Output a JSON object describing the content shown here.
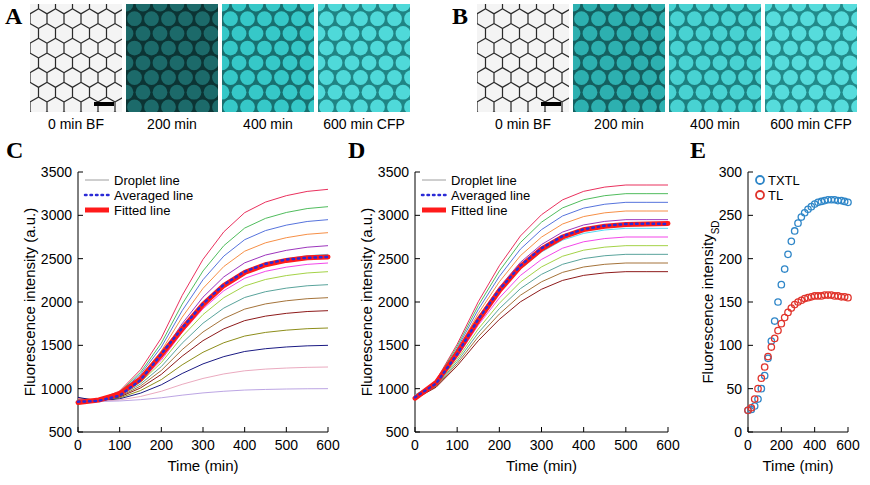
{
  "images": [
    {
      "panel": "A",
      "labels": [
        "0 min BF",
        "200 min",
        "400 min",
        "600 min CFP"
      ]
    },
    {
      "panel": "B",
      "labels": [
        "0 min BF",
        "200 min",
        "400 min",
        "600 min CFP"
      ]
    }
  ],
  "chart_data": [
    {
      "type": "line",
      "panel": "C",
      "xlabel": "Time (min)",
      "ylabel": "Fluorescence intensity (a.u.)",
      "x": [
        0,
        50,
        100,
        150,
        200,
        250,
        300,
        350,
        400,
        450,
        500,
        550,
        600
      ],
      "xlim": [
        0,
        600
      ],
      "xticks": [
        0,
        100,
        200,
        300,
        400,
        500,
        600
      ],
      "ylim": [
        500,
        3500
      ],
      "yticks": [
        500,
        1000,
        1500,
        2000,
        2500,
        3000,
        3500
      ],
      "legend": "top-left",
      "series": [
        {
          "name": "Droplet line",
          "color": "#9e9e9e",
          "line_style": "solid",
          "colors": [
            "#e6194b",
            "#3cb44b",
            "#4363d8",
            "#f58231",
            "#911eb4",
            "#42d4f4",
            "#f032e6",
            "#9acd32",
            "#469990",
            "#9a6324",
            "#800000",
            "#808000",
            "#000075",
            "#e8a0b8",
            "#b49be0"
          ],
          "lines": [
            [
              830,
              875,
              973,
              1218,
              1585,
              2075,
              2492,
              2810,
              3031,
              3153,
              3227,
              3276,
              3300
            ],
            [
              870,
              873,
              963,
              1188,
              1525,
              1975,
              2358,
              2650,
              2853,
              2965,
              3033,
              3078,
              3100
            ],
            [
              850,
              871,
              955,
              1165,
              1480,
              1900,
              2257,
              2530,
              2719,
              2824,
              2887,
              2929,
              2950
            ],
            [
              890,
              870,
              948,
              1143,
              1435,
              1825,
              2157,
              2410,
              2586,
              2683,
              2742,
              2781,
              2800
            ],
            [
              840,
              868,
              940,
              1120,
              1390,
              1750,
              2056,
              2290,
              2452,
              2542,
              2596,
              2632,
              2650
            ],
            [
              860,
              867,
              935,
              1105,
              1360,
              1700,
              1989,
              2210,
              2363,
              2448,
              2499,
              2533,
              2550
            ],
            [
              880,
              866,
              930,
              1090,
              1330,
              1650,
              1922,
              2130,
              2274,
              2354,
              2402,
              2434,
              2450
            ],
            [
              820,
              865,
              925,
              1075,
              1300,
              1600,
              1855,
              2050,
              2185,
              2260,
              2305,
              2335,
              2350
            ],
            [
              850,
              864,
              918,
              1053,
              1255,
              1525,
              1755,
              1930,
              2052,
              2119,
              2160,
              2187,
              2200
            ],
            [
              870,
              862,
              910,
              1030,
              1210,
              1450,
              1654,
              1810,
              1918,
              1978,
              2014,
              2038,
              2050
            ],
            [
              840,
              861,
              903,
              1008,
              1165,
              1375,
              1554,
              1690,
              1785,
              1837,
              1869,
              1890,
              1900
            ],
            [
              860,
              859,
              893,
              978,
              1105,
              1275,
              1420,
              1530,
              1607,
              1649,
              1675,
              1692,
              1700
            ],
            [
              900,
              857,
              883,
              948,
              1045,
              1175,
              1286,
              1370,
              1429,
              1461,
              1481,
              1494,
              1500
            ],
            [
              830,
              854,
              870,
              910,
              970,
              1050,
              1118,
              1170,
              1206,
              1226,
              1238,
              1246,
              1250
            ],
            [
              850,
              852,
              858,
              873,
              895,
              925,
              951,
              970,
              984,
              991,
              996,
              999,
              1000
            ]
          ]
        },
        {
          "name": "Averaged line",
          "color": "#2b2bd6",
          "line_style": "dotted",
          "values": [
            850,
            860,
            920,
            1100,
            1400,
            1700,
            1980,
            2200,
            2350,
            2440,
            2490,
            2510,
            2520
          ]
        },
        {
          "name": "Fitted line",
          "color": "#ff1a1a",
          "line_style": "solid",
          "values": [
            840,
            870,
            940,
            1110,
            1390,
            1690,
            1970,
            2190,
            2340,
            2430,
            2480,
            2510,
            2520
          ]
        }
      ]
    },
    {
      "type": "line",
      "panel": "D",
      "xlabel": "Time (min)",
      "ylabel": "Fluorescence intensity (a.u.)",
      "x": [
        0,
        50,
        100,
        150,
        200,
        250,
        300,
        350,
        400,
        450,
        500,
        550,
        600
      ],
      "xlim": [
        0,
        600
      ],
      "xticks": [
        0,
        100,
        200,
        300,
        400,
        500,
        600
      ],
      "ylim": [
        500,
        3500
      ],
      "yticks": [
        500,
        1000,
        1500,
        2000,
        2500,
        3000,
        3500
      ],
      "legend": "top-left",
      "series": [
        {
          "name": "Droplet line",
          "color": "#9e9e9e",
          "line_style": "solid",
          "colors": [
            "#e6194b",
            "#3cb44b",
            "#4363d8",
            "#f58231",
            "#911eb4",
            "#42d4f4",
            "#f032e6",
            "#9acd32",
            "#469990",
            "#9a6324",
            "#800000"
          ],
          "lines": [
            [
              900,
              1096,
              1513,
              2003,
              2419,
              2762,
              3007,
              3179,
              3277,
              3326,
              3350,
              3350,
              3350
            ],
            [
              880,
              1088,
              1488,
              1958,
              2357,
              2686,
              2921,
              3086,
              3180,
              3227,
              3250,
              3250,
              3250
            ],
            [
              920,
              1080,
              1463,
              1913,
              2295,
              2610,
              2835,
              2993,
              3083,
              3128,
              3150,
              3150,
              3150
            ],
            [
              900,
              1072,
              1438,
              1868,
              2233,
              2534,
              2749,
              2900,
              2986,
              3029,
              3050,
              3050,
              3050
            ],
            [
              870,
              1064,
              1413,
              1823,
              2171,
              2458,
              2663,
              2807,
              2889,
              2930,
              2950,
              2950,
              2950
            ],
            [
              930,
              1056,
              1388,
              1778,
              2109,
              2382,
              2577,
              2714,
              2792,
              2831,
              2850,
              2850,
              2850
            ],
            [
              900,
              1048,
              1363,
              1733,
              2047,
              2306,
              2491,
              2621,
              2695,
              2732,
              2750,
              2750,
              2750
            ],
            [
              890,
              1040,
              1338,
              1688,
              1985,
              2230,
              2405,
              2528,
              2598,
              2633,
              2650,
              2650,
              2650
            ],
            [
              910,
              1032,
              1313,
              1643,
              1923,
              2154,
              2319,
              2435,
              2501,
              2534,
              2550,
              2550,
              2550
            ],
            [
              900,
              1024,
              1288,
              1598,
              1861,
              2078,
              2233,
              2342,
              2404,
              2435,
              2450,
              2450,
              2450
            ],
            [
              880,
              1016,
              1263,
              1553,
              1799,
              2002,
              2147,
              2249,
              2307,
              2336,
              2350,
              2350,
              2350
            ]
          ]
        },
        {
          "name": "Averaged line",
          "color": "#2b2bd6",
          "line_style": "dotted",
          "values": [
            900,
            1060,
            1400,
            1800,
            2140,
            2420,
            2620,
            2760,
            2840,
            2880,
            2900,
            2905,
            2900
          ]
        },
        {
          "name": "Fitted line",
          "color": "#ff1a1a",
          "line_style": "solid",
          "values": [
            890,
            1070,
            1410,
            1790,
            2130,
            2410,
            2610,
            2750,
            2835,
            2875,
            2895,
            2900,
            2905
          ]
        }
      ]
    },
    {
      "type": "scatter",
      "panel": "E",
      "xlabel": "Time (min)",
      "ylabel": "Fluorescence intensity",
      "ylabel_subscript": "SD",
      "x": [
        0,
        20,
        40,
        60,
        80,
        100,
        120,
        140,
        160,
        180,
        200,
        220,
        240,
        260,
        280,
        300,
        320,
        340,
        360,
        380,
        400,
        420,
        440,
        460,
        480,
        500,
        520,
        540,
        560,
        580,
        600
      ],
      "xlim": [
        0,
        600
      ],
      "xticks": [
        0,
        200,
        400,
        600
      ],
      "ylim": [
        0,
        300
      ],
      "yticks": [
        0,
        50,
        100,
        150,
        200,
        250,
        300
      ],
      "legend": "top-left",
      "series": [
        {
          "name": "TXTL",
          "color": "#2e86c8",
          "marker": "circle",
          "values": [
            25,
            26,
            30,
            38,
            50,
            65,
            85,
            105,
            128,
            150,
            170,
            188,
            205,
            220,
            232,
            241,
            248,
            253,
            257,
            260,
            263,
            265,
            266,
            267,
            268,
            268,
            268,
            267,
            267,
            266,
            265
          ]
        },
        {
          "name": "TL",
          "color": "#e0332b",
          "marker": "circle",
          "values": [
            25,
            28,
            38,
            50,
            62,
            75,
            87,
            98,
            108,
            117,
            125,
            132,
            138,
            143,
            147,
            150,
            152,
            154,
            155,
            156,
            157,
            157,
            157,
            158,
            158,
            158,
            157,
            157,
            156,
            156,
            155
          ]
        }
      ]
    }
  ]
}
